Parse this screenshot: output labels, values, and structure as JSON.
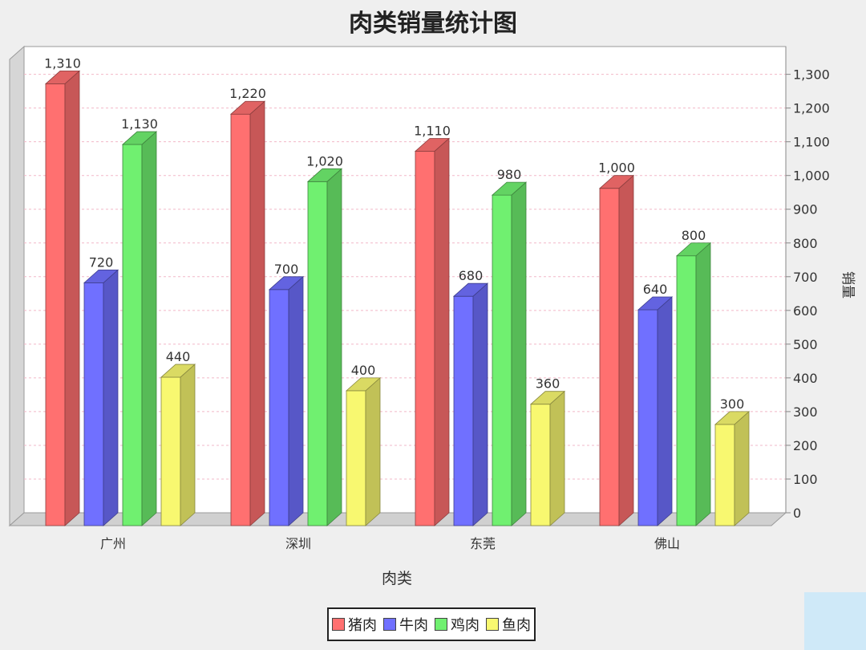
{
  "chart_data": {
    "type": "bar",
    "title": "肉类销量统计图",
    "xlabel": "肉类",
    "ylabel": "销量",
    "categories": [
      "广州",
      "深圳",
      "东莞",
      "佛山"
    ],
    "series": [
      {
        "name": "猪肉",
        "values": [
          1310,
          1220,
          1110,
          1000
        ],
        "color": "#ff7070"
      },
      {
        "name": "牛肉",
        "values": [
          720,
          700,
          680,
          640
        ],
        "color": "#7070ff"
      },
      {
        "name": "鸡肉",
        "values": [
          1130,
          1020,
          980,
          800
        ],
        "color": "#70f070"
      },
      {
        "name": "鱼肉",
        "values": [
          440,
          400,
          360,
          300
        ],
        "color": "#f8f870"
      }
    ],
    "ylim": [
      0,
      1350
    ],
    "y_ticks": [
      0,
      100,
      200,
      300,
      400,
      500,
      600,
      700,
      800,
      900,
      1000,
      1100,
      1200,
      1300
    ],
    "y_axis_side": "right",
    "grid": true,
    "legend_position": "bottom",
    "style": "3d"
  }
}
